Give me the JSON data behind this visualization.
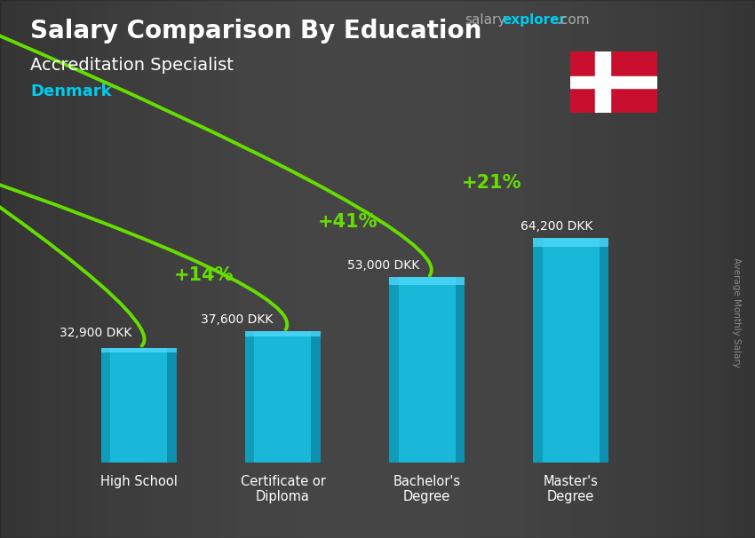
{
  "title": "Salary Comparison By Education",
  "subtitle": "Accreditation Specialist",
  "country": "Denmark",
  "ylabel": "Average Monthly Salary",
  "website_salary": "salary",
  "website_explorer": "explorer",
  "website_com": ".com",
  "categories": [
    "High School",
    "Certificate or\nDiploma",
    "Bachelor's\nDegree",
    "Master's\nDegree"
  ],
  "values": [
    32900,
    37600,
    53000,
    64200
  ],
  "value_labels": [
    "32,900 DKK",
    "37,600 DKK",
    "53,000 DKK",
    "64,200 DKK"
  ],
  "pct_labels": [
    "+14%",
    "+41%",
    "+21%"
  ],
  "bar_color": "#1ab8d8",
  "bar_color_left": "#0e9ab8",
  "bar_color_right": "#0a7fa0",
  "bar_width": 0.52,
  "bg_color": "#555555",
  "title_color": "#ffffff",
  "subtitle_color": "#ffffff",
  "country_color": "#00ccee",
  "value_color": "#ffffff",
  "pct_color": "#88ee00",
  "website_salary_color": "#aaaaaa",
  "website_explorer_color": "#00ccee",
  "website_com_color": "#aaaaaa",
  "flag_red": "#c8102e",
  "flag_white": "#ffffff",
  "ylim_max": 80000,
  "arrow_color": "#66dd00",
  "right_label_color": "#888888"
}
